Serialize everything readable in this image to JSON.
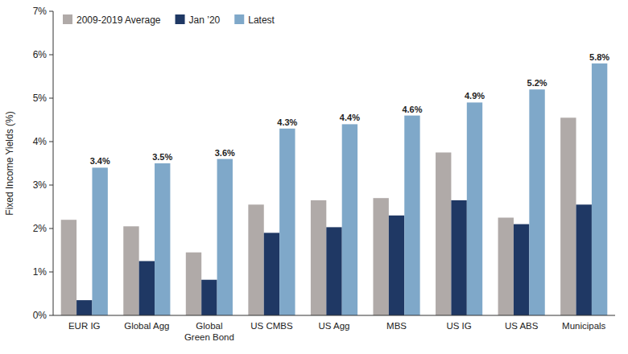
{
  "chart_data": {
    "type": "bar",
    "categories": [
      "EUR IG",
      "Global Agg",
      "Global\nGreen Bond",
      "US CMBS",
      "US Agg",
      "MBS",
      "US IG",
      "US ABS",
      "Municipals"
    ],
    "series": [
      {
        "name": "2009-2019 Average",
        "color": "#b0aaa8",
        "values": [
          2.2,
          2.05,
          1.45,
          2.55,
          2.65,
          2.7,
          3.75,
          2.25,
          4.55
        ]
      },
      {
        "name": "Jan ’20",
        "color": "#1f3864",
        "values": [
          0.35,
          1.25,
          0.82,
          1.9,
          2.03,
          2.3,
          2.65,
          2.1,
          2.55
        ]
      },
      {
        "name": "Latest",
        "color": "#7fa8c9",
        "values": [
          3.4,
          3.5,
          3.6,
          4.3,
          4.4,
          4.6,
          4.9,
          5.2,
          5.8
        ],
        "data_labels": true,
        "value_labels": [
          "3.4%",
          "3.5%",
          "3.6%",
          "4.3%",
          "4.4%",
          "4.6%",
          "4.9%",
          "5.2%",
          "5.8%"
        ]
      }
    ],
    "y_label": "Fixed Income Yields (%)",
    "ylim": [
      0,
      7
    ],
    "yticks": [
      {
        "value": 0,
        "label": "0%"
      },
      {
        "value": 1,
        "label": "1%"
      },
      {
        "value": 2,
        "label": "2%"
      },
      {
        "value": 3,
        "label": "3%"
      },
      {
        "value": 4,
        "label": "4%"
      },
      {
        "value": 5,
        "label": "5%"
      },
      {
        "value": 6,
        "label": "6%"
      },
      {
        "value": 7,
        "label": "7%"
      }
    ],
    "grid": false,
    "legend": "upper left"
  }
}
